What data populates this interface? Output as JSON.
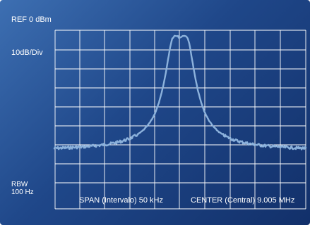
{
  "analyzer": {
    "reference_level": "REF 0 dBm",
    "vertical_scale": "10dB/Div",
    "rbw_label": "RBW",
    "rbw_value": "100 Hz",
    "span": "SPAN (Intervalo) 50 kHz",
    "center": "CENTER (Central) 9.005 MHz",
    "colors": {
      "background": "#1f4789",
      "grid": "#ffffff",
      "trace": "#8cb2dc"
    }
  }
}
